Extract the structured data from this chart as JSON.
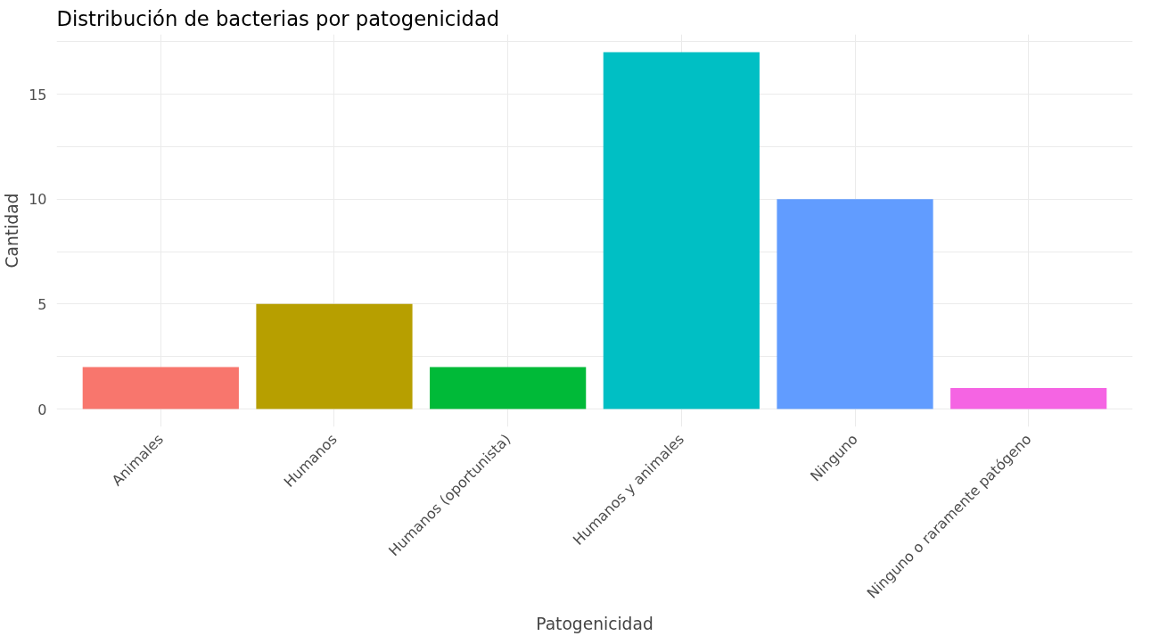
{
  "chart_data": {
    "type": "bar",
    "title": "Distribución de bacterias por patogenicidad",
    "xlabel": "Patogenicidad",
    "ylabel": "Cantidad",
    "categories": [
      "Animales",
      "Humanos",
      "Humanos (oportunista)",
      "Humanos y animales",
      "Ninguno",
      "Ninguno o raramente patógeno"
    ],
    "values": [
      2,
      5,
      2,
      17,
      10,
      1
    ],
    "colors": [
      "#f8766d",
      "#b79f00",
      "#00ba38",
      "#00bfc4",
      "#619cff",
      "#f564e3"
    ],
    "ylim": [
      -0.85,
      17.85
    ],
    "yticks": [
      0,
      5,
      10,
      15
    ],
    "grid": true
  }
}
